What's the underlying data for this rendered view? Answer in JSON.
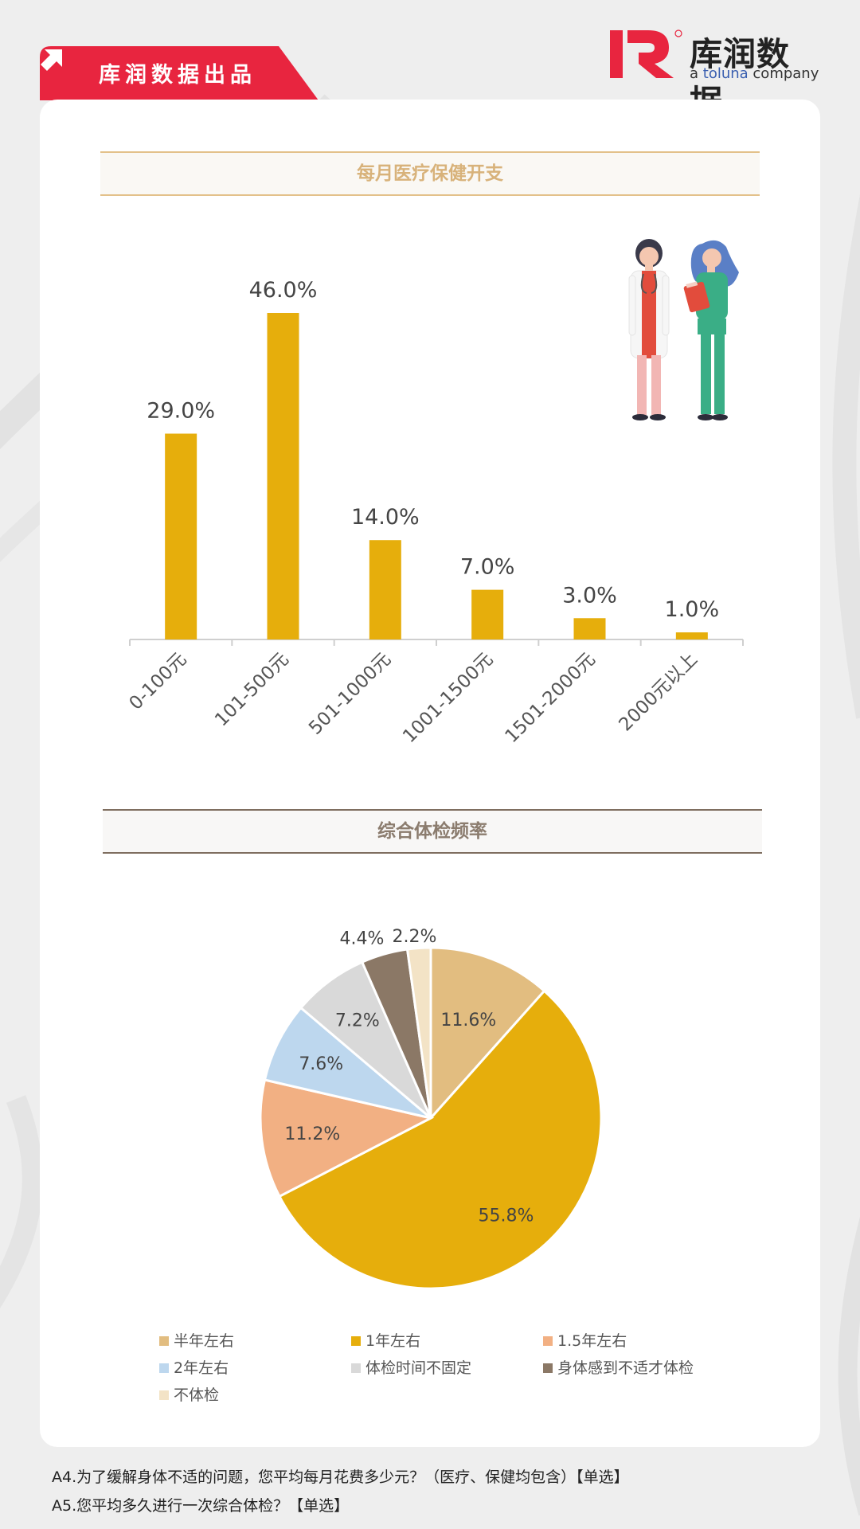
{
  "brand": {
    "tag_label": "库润数据出品",
    "logo_name": "库润数据",
    "logo_sub_prefix": "a ",
    "logo_sub_highlight": "toluna",
    "logo_sub_suffix": " company",
    "accent": "#e8253f"
  },
  "chart_data": [
    {
      "type": "bar",
      "title": "每月医疗保健开支",
      "categories": [
        "0-100元",
        "101-500元",
        "501-1000元",
        "1001-1500元",
        "1501-2000元",
        "2000元以上"
      ],
      "values": [
        29.0,
        46.0,
        14.0,
        7.0,
        3.0,
        1.0
      ],
      "value_labels": [
        "29.0%",
        "46.0%",
        "14.0%",
        "7.0%",
        "3.0%",
        "1.0%"
      ],
      "ylim": [
        0,
        46
      ],
      "color": "#e6ae0c",
      "grid": false
    },
    {
      "type": "pie",
      "title": "综合体检频率",
      "labels": [
        "半年左右",
        "1年左右",
        "1.5年左右",
        "2年左右",
        "体检时间不固定",
        "身体感到不适才体检",
        "不体检"
      ],
      "values": [
        11.6,
        55.8,
        11.2,
        7.6,
        7.2,
        4.4,
        2.2
      ],
      "value_labels": [
        "11.6%",
        "55.8%",
        "11.2%",
        "7.6%",
        "7.2%",
        "4.4%",
        "2.2%"
      ],
      "colors": [
        "#e2bd80",
        "#e6ae0c",
        "#f2b083",
        "#bdd7ee",
        "#d9d9d9",
        "#8b7866",
        "#f3e3c6"
      ],
      "legend_position": "bottom"
    }
  ],
  "footnotes": [
    "A4.为了缓解身体不适的问题，您平均每月花费多少元？（医疗、保健均包含）【单选】",
    "A5.您平均多久进行一次综合体检？【单选】"
  ]
}
